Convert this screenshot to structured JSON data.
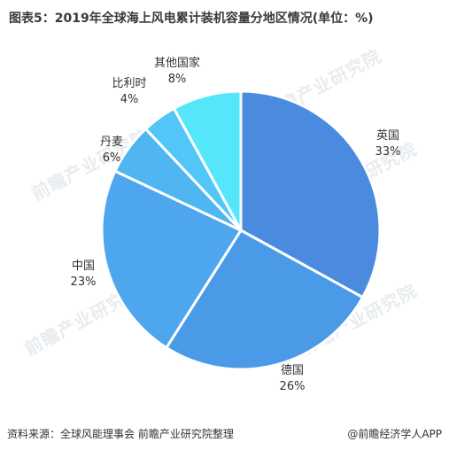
{
  "title": "图表5：2019年全球海上风电累计装机容量分地区情况(单位：%)",
  "footer": {
    "source": "资料来源：全球风能理事会 前瞻产业研究院整理",
    "brand": "@前瞻经济学人APP"
  },
  "watermarks": [
    "前瞻产业研究院",
    "前瞻产业研究院",
    "前瞻产业研究院",
    "前瞻产业研究院",
    "前瞻产业研究院",
    "前瞻产业研究院"
  ],
  "chart_data": {
    "type": "pie",
    "title": "图表5：2019年全球海上风电累计装机容量分地区情况(单位：%)",
    "slices": [
      {
        "label": "英国",
        "value": 33,
        "value_text": "33%",
        "color": "#4a8be0"
      },
      {
        "label": "德国",
        "value": 26,
        "value_text": "26%",
        "color": "#4a9ae8"
      },
      {
        "label": "中国",
        "value": 23,
        "value_text": "23%",
        "color": "#4da6ee"
      },
      {
        "label": "丹麦",
        "value": 6,
        "value_text": "6%",
        "color": "#4fb6f2"
      },
      {
        "label": "比利时",
        "value": 4,
        "value_text": "4%",
        "color": "#52c6f6"
      },
      {
        "label": "其他国家",
        "value": 8,
        "value_text": "8%",
        "color": "#55e6fa"
      }
    ],
    "start_angle": "12 o'clock",
    "direction": "clockwise"
  }
}
